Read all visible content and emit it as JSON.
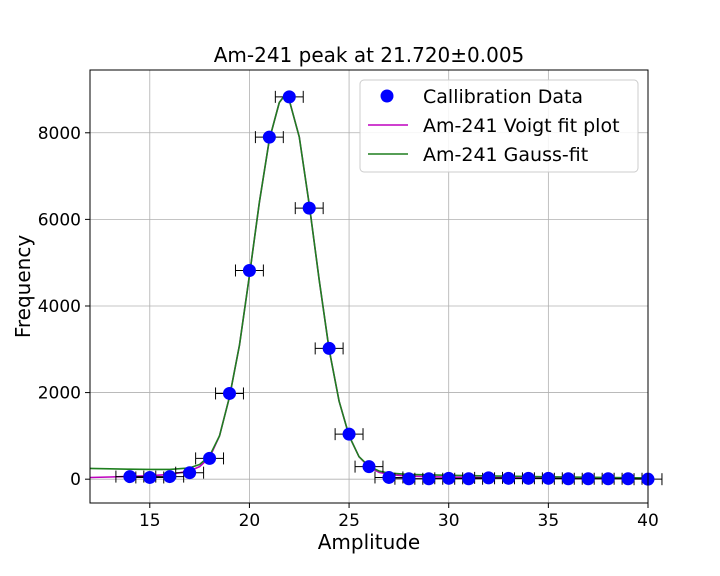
{
  "chart_data": {
    "type": "scatter",
    "title": "Am-241 peak at 21.720±0.005",
    "xlabel": "Amplitude",
    "ylabel": "Frequency",
    "xlim": [
      12,
      40
    ],
    "ylim": [
      -550,
      9450
    ],
    "xticks": [
      15,
      20,
      25,
      30,
      35,
      40
    ],
    "yticks": [
      0,
      2000,
      4000,
      6000,
      8000
    ],
    "grid": true,
    "legend_position": "top-right",
    "colors": {
      "data": "#0000ff",
      "voigt": "#bf00bf",
      "gauss": "#1f7f1f",
      "errorbar": "#000000"
    },
    "legend": [
      {
        "key": "data",
        "label": "Callibration Data",
        "marker": "circle"
      },
      {
        "key": "voigt",
        "label": "Am-241 Voigt fit plot",
        "marker": "line"
      },
      {
        "key": "gauss",
        "label": "Am-241 Gauss-fit",
        "marker": "line"
      }
    ],
    "series": [
      {
        "name": "Callibration Data",
        "kind": "points_with_xerr",
        "x_err": 0.7,
        "x": [
          14,
          15,
          16,
          17,
          18,
          19,
          20,
          21,
          22,
          23,
          24,
          25,
          26,
          27,
          28,
          29,
          30,
          31,
          32,
          33,
          34,
          35,
          36,
          37,
          38,
          39,
          40
        ],
        "y": [
          60,
          40,
          60,
          150,
          480,
          1980,
          4820,
          7900,
          8830,
          6260,
          3020,
          1040,
          290,
          40,
          10,
          10,
          20,
          10,
          30,
          20,
          20,
          20,
          10,
          10,
          10,
          10,
          0
        ]
      },
      {
        "name": "Am-241 Voigt fit plot",
        "kind": "line",
        "x": [
          12,
          13,
          14,
          15,
          16,
          17,
          17.5,
          18,
          18.5,
          19,
          19.5,
          20,
          20.5,
          21,
          21.5,
          21.72,
          22,
          22.5,
          23,
          23.5,
          24,
          24.5,
          25,
          25.5,
          26,
          26.5,
          27,
          28,
          30,
          32,
          35,
          40
        ],
        "y": [
          40,
          50,
          65,
          80,
          110,
          190,
          290,
          500,
          1000,
          1900,
          3100,
          4700,
          6400,
          7850,
          8700,
          8830,
          8750,
          7900,
          6350,
          4600,
          3000,
          1800,
          1000,
          520,
          280,
          160,
          110,
          70,
          45,
          35,
          25,
          20
        ]
      },
      {
        "name": "Am-241 Gauss-fit",
        "kind": "line",
        "x": [
          12,
          13,
          14,
          15,
          16,
          17,
          17.5,
          18,
          18.5,
          19,
          19.5,
          20,
          20.5,
          21,
          21.5,
          21.72,
          22,
          22.5,
          23,
          23.5,
          24,
          24.5,
          25,
          25.5,
          26,
          26.5,
          27,
          28,
          30,
          32,
          35,
          40
        ],
        "y": [
          250,
          240,
          230,
          225,
          225,
          260,
          340,
          540,
          1000,
          1900,
          3100,
          4700,
          6400,
          7850,
          8700,
          8830,
          8750,
          7900,
          6350,
          4600,
          3000,
          1800,
          1000,
          520,
          300,
          190,
          140,
          110,
          90,
          75,
          55,
          30
        ]
      }
    ]
  }
}
